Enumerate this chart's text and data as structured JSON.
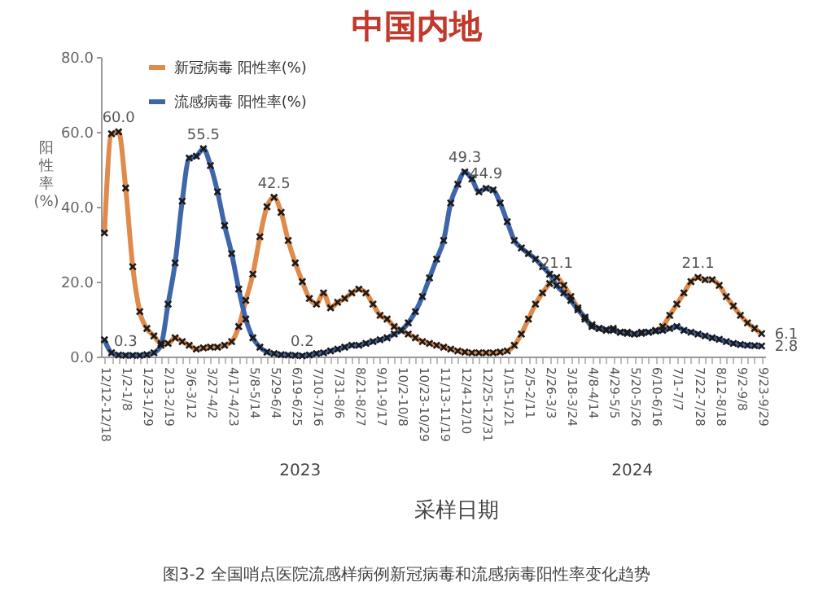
{
  "chart_data": {
    "type": "line",
    "title": "中国内地",
    "xlabel": "采样日期",
    "ylabel": "阳性率(%)",
    "annotations": [
      "2023",
      "2024",
      "图3-2 全国哨点医院流感样病例新冠病毒和流感病毒阳性率变化趋势"
    ],
    "categories": [
      "12/12-12/18",
      null,
      null,
      "1/2-1/8",
      null,
      null,
      "1/23-1/29",
      null,
      null,
      "2/13-2/19",
      null,
      null,
      "3/6-3/12",
      null,
      null,
      "3/27-4/2",
      null,
      null,
      "4/17-4/23",
      null,
      null,
      "5/8-5/14",
      null,
      null,
      "5/29-6/4",
      null,
      null,
      "6/19-6/25",
      null,
      null,
      "7/10-7/16",
      null,
      null,
      "7/31-8/6",
      null,
      null,
      "8/21-8/27",
      null,
      null,
      "9/11-9/17",
      null,
      null,
      "10/2-10/8",
      null,
      null,
      "10/23-10/29",
      null,
      null,
      "11/13-11/19",
      null,
      null,
      "12/4-12/10",
      null,
      null,
      "12/25-12/31",
      null,
      null,
      "1/15-1/21",
      null,
      null,
      "2/5-2/11",
      null,
      null,
      "2/26-3/3",
      null,
      null,
      "3/18-3/24",
      null,
      null,
      "4/8-4/14",
      null,
      null,
      "4/29-5/5",
      null,
      null,
      "5/20-5/26",
      null,
      null,
      "6/10-6/16",
      null,
      null,
      "7/1-7/7",
      null,
      null,
      "7/22-7/28",
      null,
      null,
      "8/12-8/18",
      null,
      null,
      "9/2-9/8",
      null,
      null,
      "9/23-9/29"
    ],
    "series": [
      {
        "name": "新冠病毒 阳性率(%)",
        "color": "#e08a4c",
        "values": [
          33,
          59.5,
          60.0,
          45,
          24,
          12,
          7.5,
          5.5,
          3.5,
          3.5,
          5,
          4,
          3,
          2,
          2.3,
          2.5,
          2.5,
          3,
          4,
          8,
          15,
          22,
          32,
          40,
          42.5,
          38.5,
          31,
          25,
          20,
          15.5,
          14,
          17,
          13,
          14.5,
          15.5,
          17,
          18,
          17,
          14,
          11,
          10,
          8,
          7,
          6,
          5,
          4,
          3.5,
          3,
          2.5,
          2,
          1.5,
          1.2,
          1,
          1,
          1,
          1,
          1.2,
          1.5,
          3,
          6,
          10,
          14,
          17,
          19.5,
          21.1,
          19,
          16,
          13,
          10,
          8.5,
          7.5,
          7,
          7.5,
          6.5,
          6.5,
          6,
          6.5,
          6.5,
          7,
          8,
          11,
          14,
          17,
          20,
          21.1,
          20.5,
          20.5,
          19,
          16,
          13.5,
          11,
          9,
          7.5,
          6.1
        ],
        "value_labels": [
          null,
          null,
          "60.0",
          null,
          null,
          null,
          null,
          null,
          null,
          null,
          null,
          null,
          null,
          null,
          null,
          null,
          null,
          null,
          null,
          null,
          null,
          null,
          null,
          null,
          "42.5",
          null,
          null,
          null,
          null,
          null,
          null,
          null,
          null,
          null,
          null,
          null,
          null,
          null,
          null,
          null,
          null,
          null,
          null,
          null,
          null,
          null,
          null,
          null,
          null,
          null,
          null,
          null,
          null,
          null,
          null,
          null,
          null,
          null,
          null,
          null,
          null,
          null,
          null,
          null,
          "21.1",
          null,
          null,
          null,
          null,
          null,
          null,
          null,
          null,
          null,
          null,
          null,
          null,
          null,
          null,
          null,
          null,
          null,
          null,
          null,
          "21.1",
          null,
          null,
          null,
          null,
          null,
          null,
          null,
          null,
          "6.1"
        ]
      },
      {
        "name": "流感病毒 阳性率(%)",
        "color": "#3f66ab",
        "values": [
          4.5,
          1,
          0.4,
          0.3,
          0.3,
          0.3,
          0.5,
          1,
          3,
          14,
          25,
          41.5,
          53,
          53.5,
          55.5,
          51,
          44,
          35,
          27.5,
          18,
          10,
          5,
          2.5,
          1.2,
          0.8,
          0.5,
          0.4,
          0.3,
          0.2,
          0.4,
          0.8,
          1,
          1.5,
          2,
          2.5,
          3,
          3,
          3.5,
          4,
          4.5,
          5,
          6,
          7,
          9,
          12,
          16,
          21,
          26,
          31,
          41,
          46,
          49.3,
          47.4,
          44,
          44.9,
          44.5,
          41,
          36,
          31,
          29,
          27.5,
          26,
          24,
          22,
          19,
          17,
          15,
          12.5,
          10.5,
          8,
          7.5,
          7.2,
          7,
          6.5,
          6.2,
          6,
          6.2,
          6.5,
          6.8,
          7,
          7.5,
          8,
          7,
          6.5,
          6,
          5.5,
          5,
          4.6,
          4,
          3.5,
          3.2,
          3,
          2.9,
          2.8
        ],
        "value_labels": [
          null,
          null,
          null,
          "0.3",
          null,
          null,
          null,
          null,
          null,
          null,
          null,
          null,
          null,
          null,
          "55.5",
          null,
          null,
          null,
          null,
          null,
          null,
          null,
          null,
          null,
          null,
          null,
          null,
          null,
          "0.2",
          null,
          null,
          null,
          null,
          null,
          null,
          null,
          null,
          null,
          null,
          null,
          null,
          null,
          null,
          null,
          null,
          null,
          null,
          null,
          null,
          null,
          null,
          "49.3",
          null,
          null,
          "44.9",
          null,
          null,
          null,
          null,
          null,
          null,
          null,
          null,
          null,
          null,
          null,
          null,
          null,
          null,
          null,
          null,
          null,
          null,
          null,
          null,
          null,
          null,
          null,
          null,
          null,
          null,
          null,
          null,
          null,
          null,
          null,
          null,
          null,
          null,
          null,
          null,
          null,
          null,
          "2.8"
        ]
      }
    ],
    "ylim": [
      0,
      80
    ],
    "yticks": [
      {
        "value": 0,
        "label": "0.0"
      },
      {
        "value": 20,
        "label": "20.0"
      },
      {
        "value": 40,
        "label": "40.0"
      },
      {
        "value": 60,
        "label": "60.0"
      },
      {
        "value": 80,
        "label": "80.0"
      }
    ],
    "grid": false,
    "legend": "top left",
    "marker": "cross",
    "line_style": "solid"
  }
}
